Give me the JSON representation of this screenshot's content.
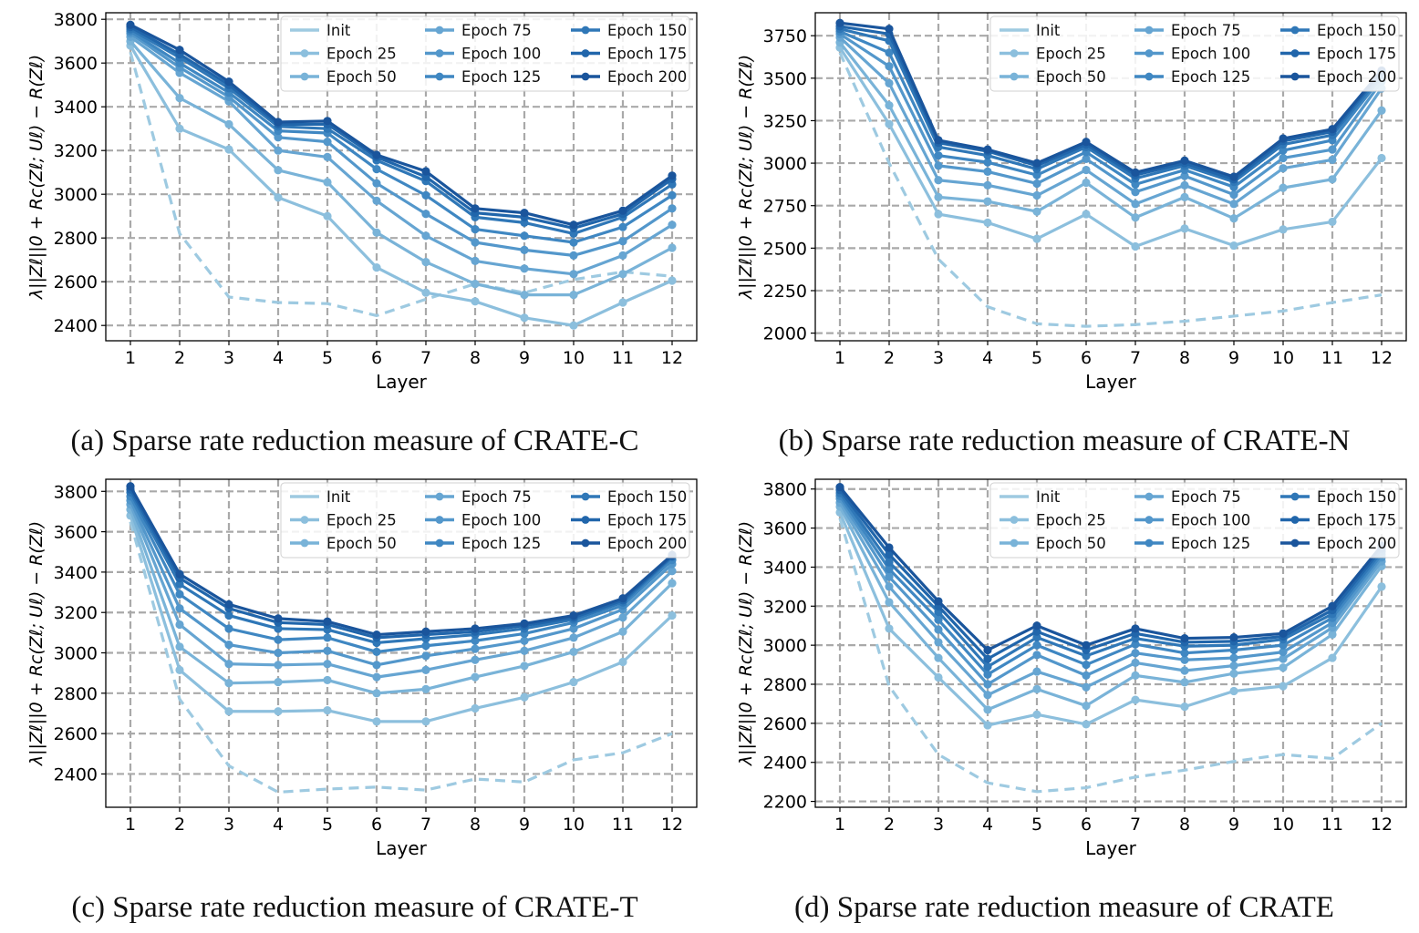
{
  "legend_labels": [
    "Init",
    "Epoch 25",
    "Epoch 50",
    "Epoch 75",
    "Epoch 100",
    "Epoch 125",
    "Epoch 150",
    "Epoch 175",
    "Epoch 200"
  ],
  "series_colors": [
    "#9ecae1",
    "#8cbfdd",
    "#79b3d8",
    "#66a5d2",
    "#5397cb",
    "#3f87c2",
    "#2f77b7",
    "#2166ab",
    "#1a559c"
  ],
  "chart_data": [
    {
      "id": "a",
      "type": "line",
      "caption": "(a) Sparse rate reduction measure of CRATE-C",
      "xlabel": "Layer",
      "ylabel": "λ||Zℓ||0 + Rc(Zℓ; Uℓ) − R(Zℓ)",
      "x": [
        1,
        2,
        3,
        4,
        5,
        6,
        7,
        8,
        9,
        10,
        11,
        12
      ],
      "xlim": [
        0.5,
        12.5
      ],
      "ylim": [
        2330,
        3830
      ],
      "yticks": [
        2400,
        2600,
        2800,
        3000,
        3200,
        3400,
        3600,
        3800
      ],
      "grid": true,
      "legend": "top-right",
      "series": [
        {
          "name": "Init",
          "values": [
            3650,
            2820,
            2530,
            2505,
            2500,
            2445,
            2520,
            2590,
            2550,
            2610,
            2645,
            2625
          ]
        },
        {
          "name": "Epoch 25",
          "values": [
            3680,
            3300,
            3205,
            2985,
            2900,
            2665,
            2550,
            2510,
            2435,
            2400,
            2505,
            2605
          ]
        },
        {
          "name": "Epoch 50",
          "values": [
            3700,
            3440,
            3320,
            3110,
            3055,
            2825,
            2690,
            2590,
            2540,
            2540,
            2635,
            2755
          ]
        },
        {
          "name": "Epoch 75",
          "values": [
            3720,
            3555,
            3425,
            3200,
            3170,
            2970,
            2810,
            2695,
            2660,
            2635,
            2720,
            2860
          ]
        },
        {
          "name": "Epoch 100",
          "values": [
            3735,
            3580,
            3445,
            3260,
            3240,
            3050,
            2910,
            2780,
            2745,
            2720,
            2785,
            2935
          ]
        },
        {
          "name": "Epoch 125",
          "values": [
            3745,
            3600,
            3465,
            3290,
            3280,
            3115,
            2995,
            2840,
            2810,
            2780,
            2850,
            2995
          ]
        },
        {
          "name": "Epoch 150",
          "values": [
            3755,
            3625,
            3485,
            3310,
            3300,
            3155,
            3060,
            2895,
            2870,
            2820,
            2895,
            3045
          ]
        },
        {
          "name": "Epoch 175",
          "values": [
            3765,
            3640,
            3500,
            3320,
            3320,
            3170,
            3080,
            2915,
            2895,
            2845,
            2910,
            3070
          ]
        },
        {
          "name": "Epoch 200",
          "values": [
            3775,
            3660,
            3515,
            3330,
            3335,
            3180,
            3105,
            2935,
            2915,
            2860,
            2925,
            3085
          ]
        }
      ]
    },
    {
      "id": "b",
      "type": "line",
      "caption": "(b) Sparse rate reduction measure of CRATE-N",
      "xlabel": "Layer",
      "ylabel": "λ||Zℓ||0 + Rc(Zℓ; Uℓ) − R(Zℓ)",
      "x": [
        1,
        2,
        3,
        4,
        5,
        6,
        7,
        8,
        9,
        10,
        11,
        12
      ],
      "xlim": [
        0.5,
        12.5
      ],
      "ylim": [
        1955,
        3885
      ],
      "yticks": [
        2000,
        2250,
        2500,
        2750,
        3000,
        3250,
        3500,
        3750
      ],
      "grid": true,
      "legend": "top-right",
      "series": [
        {
          "name": "Init",
          "values": [
            3650,
            3000,
            2435,
            2155,
            2055,
            2040,
            2050,
            2070,
            2100,
            2130,
            2180,
            2225
          ]
        },
        {
          "name": "Epoch 25",
          "values": [
            3680,
            3230,
            2700,
            2650,
            2555,
            2700,
            2510,
            2615,
            2515,
            2610,
            2655,
            3030
          ]
        },
        {
          "name": "Epoch 50",
          "values": [
            3710,
            3340,
            2800,
            2775,
            2715,
            2885,
            2680,
            2800,
            2675,
            2855,
            2905,
            3310
          ]
        },
        {
          "name": "Epoch 75",
          "values": [
            3740,
            3470,
            2900,
            2870,
            2810,
            2960,
            2760,
            2870,
            2760,
            2970,
            3020,
            3440
          ]
        },
        {
          "name": "Epoch 100",
          "values": [
            3760,
            3570,
            2985,
            2950,
            2880,
            3025,
            2830,
            2925,
            2815,
            3030,
            3080,
            3480
          ]
        },
        {
          "name": "Epoch 125",
          "values": [
            3775,
            3650,
            3045,
            3005,
            2930,
            3065,
            2875,
            2960,
            2860,
            3075,
            3135,
            3505
          ]
        },
        {
          "name": "Epoch 150",
          "values": [
            3790,
            3720,
            3095,
            3045,
            2965,
            3095,
            2910,
            2985,
            2890,
            3110,
            3165,
            3520
          ]
        },
        {
          "name": "Epoch 175",
          "values": [
            3805,
            3760,
            3120,
            3070,
            2985,
            3110,
            2930,
            3000,
            2905,
            3130,
            3185,
            3535
          ]
        },
        {
          "name": "Epoch 200",
          "values": [
            3825,
            3790,
            3135,
            3080,
            3000,
            3125,
            2945,
            3015,
            2920,
            3145,
            3200,
            3545
          ]
        }
      ]
    },
    {
      "id": "c",
      "type": "line",
      "caption": "(c) Sparse rate reduction measure of CRATE-T",
      "xlabel": "Layer",
      "ylabel": "λ||Zℓ||0 + Rc(Zℓ; Uℓ) − R(Zℓ)",
      "x": [
        1,
        2,
        3,
        4,
        5,
        6,
        7,
        8,
        9,
        10,
        11,
        12
      ],
      "xlim": [
        0.5,
        12.5
      ],
      "ylim": [
        2235,
        3860
      ],
      "yticks": [
        2400,
        2600,
        2800,
        3000,
        3200,
        3400,
        3600,
        3800
      ],
      "grid": true,
      "legend": "top-right",
      "series": [
        {
          "name": "Init",
          "values": [
            3650,
            2770,
            2440,
            2310,
            2325,
            2335,
            2320,
            2375,
            2360,
            2470,
            2505,
            2600
          ]
        },
        {
          "name": "Epoch 25",
          "values": [
            3680,
            2915,
            2710,
            2710,
            2715,
            2660,
            2660,
            2725,
            2780,
            2855,
            2955,
            3185
          ]
        },
        {
          "name": "Epoch 50",
          "values": [
            3710,
            3030,
            2850,
            2855,
            2865,
            2800,
            2820,
            2880,
            2935,
            3005,
            3105,
            3345
          ]
        },
        {
          "name": "Epoch 75",
          "values": [
            3735,
            3140,
            2945,
            2940,
            2945,
            2880,
            2915,
            2965,
            3010,
            3075,
            3175,
            3405
          ]
        },
        {
          "name": "Epoch 100",
          "values": [
            3755,
            3220,
            3040,
            3000,
            3010,
            2940,
            2985,
            3020,
            3060,
            3120,
            3215,
            3440
          ]
        },
        {
          "name": "Epoch 125",
          "values": [
            3775,
            3290,
            3120,
            3065,
            3075,
            3005,
            3035,
            3060,
            3095,
            3150,
            3235,
            3460
          ]
        },
        {
          "name": "Epoch 150",
          "values": [
            3795,
            3340,
            3185,
            3120,
            3115,
            3050,
            3070,
            3090,
            3120,
            3165,
            3250,
            3475
          ]
        },
        {
          "name": "Epoch 175",
          "values": [
            3810,
            3370,
            3220,
            3150,
            3140,
            3075,
            3090,
            3105,
            3135,
            3175,
            3260,
            3480
          ]
        },
        {
          "name": "Epoch 200",
          "values": [
            3825,
            3390,
            3240,
            3170,
            3155,
            3090,
            3105,
            3120,
            3145,
            3185,
            3270,
            3485
          ]
        }
      ]
    },
    {
      "id": "d",
      "type": "line",
      "caption": "(d) Sparse rate reduction measure of CRATE",
      "xlabel": "Layer",
      "ylabel": "λ||Zℓ||0 + Rc(Zℓ; Uℓ) − R(Zℓ)",
      "x": [
        1,
        2,
        3,
        4,
        5,
        6,
        7,
        8,
        9,
        10,
        11,
        12
      ],
      "xlim": [
        0.5,
        12.5
      ],
      "ylim": [
        2170,
        3850
      ],
      "yticks": [
        2200,
        2400,
        2600,
        2800,
        3000,
        3200,
        3400,
        3600,
        3800
      ],
      "grid": true,
      "legend": "top-right",
      "series": [
        {
          "name": "Init",
          "values": [
            3650,
            2790,
            2440,
            2295,
            2250,
            2270,
            2325,
            2360,
            2405,
            2440,
            2420,
            2600
          ]
        },
        {
          "name": "Epoch 25",
          "values": [
            3680,
            3085,
            2835,
            2590,
            2645,
            2595,
            2720,
            2685,
            2765,
            2790,
            2935,
            3300
          ]
        },
        {
          "name": "Epoch 50",
          "values": [
            3710,
            3220,
            2935,
            2670,
            2775,
            2690,
            2845,
            2810,
            2855,
            2885,
            3055,
            3405
          ]
        },
        {
          "name": "Epoch 75",
          "values": [
            3730,
            3300,
            3015,
            2745,
            2865,
            2785,
            2910,
            2870,
            2895,
            2930,
            3090,
            3430
          ]
        },
        {
          "name": "Epoch 100",
          "values": [
            3750,
            3350,
            3080,
            2800,
            2950,
            2845,
            2960,
            2925,
            2935,
            2965,
            3115,
            3450
          ]
        },
        {
          "name": "Epoch 125",
          "values": [
            3765,
            3390,
            3130,
            2850,
            3000,
            2900,
            3005,
            2960,
            2975,
            3000,
            3140,
            3465
          ]
        },
        {
          "name": "Epoch 150",
          "values": [
            3780,
            3425,
            3170,
            2890,
            3040,
            2945,
            3035,
            2995,
            3000,
            3030,
            3160,
            3480
          ]
        },
        {
          "name": "Epoch 175",
          "values": [
            3795,
            3465,
            3200,
            2930,
            3070,
            2975,
            3060,
            3015,
            3020,
            3045,
            3180,
            3495
          ]
        },
        {
          "name": "Epoch 200",
          "values": [
            3810,
            3500,
            3225,
            2975,
            3100,
            3000,
            3085,
            3035,
            3040,
            3060,
            3200,
            3510
          ]
        }
      ]
    }
  ]
}
